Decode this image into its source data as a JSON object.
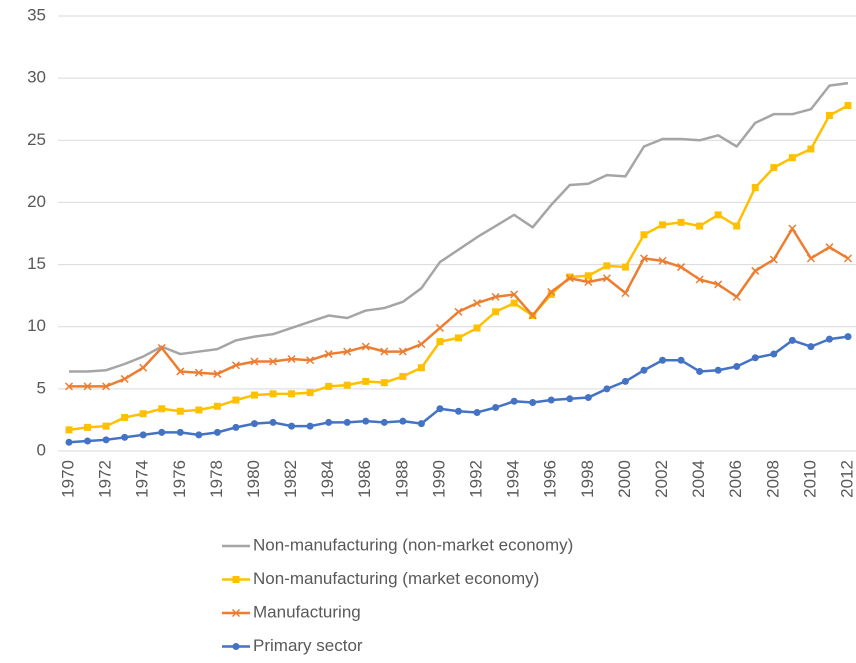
{
  "chart_data": {
    "type": "line",
    "x": [
      1970,
      1971,
      1972,
      1973,
      1974,
      1975,
      1976,
      1977,
      1978,
      1979,
      1980,
      1981,
      1982,
      1983,
      1984,
      1985,
      1986,
      1987,
      1988,
      1989,
      1990,
      1991,
      1992,
      1993,
      1994,
      1995,
      1996,
      1997,
      1998,
      1999,
      2000,
      2001,
      2002,
      2003,
      2004,
      2005,
      2006,
      2007,
      2008,
      2009,
      2010,
      2011,
      2012
    ],
    "xlim": [
      1970,
      2012
    ],
    "xticks": [
      1970,
      1972,
      1974,
      1976,
      1978,
      1980,
      1982,
      1984,
      1986,
      1988,
      1990,
      1992,
      1994,
      1996,
      1998,
      2000,
      2002,
      2004,
      2006,
      2008,
      2010,
      2012
    ],
    "ylim": [
      0,
      35
    ],
    "yticks": [
      0,
      5,
      10,
      15,
      20,
      25,
      30,
      35
    ],
    "grid": true,
    "legend": "bottom",
    "series": [
      {
        "name": "Non-manufacturing (non-market economy)",
        "color": "#a5a5a5",
        "marker": "none",
        "values": [
          6.4,
          6.4,
          6.5,
          7.0,
          7.6,
          8.4,
          7.8,
          8.0,
          8.2,
          8.9,
          9.2,
          9.4,
          9.9,
          10.4,
          10.9,
          10.7,
          11.3,
          11.5,
          12.0,
          13.1,
          15.2,
          16.2,
          17.2,
          18.1,
          19.0,
          18.0,
          19.8,
          21.4,
          21.5,
          22.2,
          22.1,
          24.5,
          25.1,
          25.1,
          25.0,
          25.4,
          24.5,
          26.4,
          27.1,
          27.1,
          27.5,
          29.4,
          29.6
        ]
      },
      {
        "name": "Non-manufacturing (market economy)",
        "color": "#ffc000",
        "marker": "square",
        "values": [
          1.7,
          1.9,
          2.0,
          2.7,
          3.0,
          3.4,
          3.2,
          3.3,
          3.6,
          4.1,
          4.5,
          4.6,
          4.6,
          4.7,
          5.2,
          5.3,
          5.6,
          5.5,
          6.0,
          6.7,
          8.8,
          9.1,
          9.9,
          11.2,
          11.9,
          10.9,
          12.6,
          14.0,
          14.1,
          14.9,
          14.8,
          17.4,
          18.2,
          18.4,
          18.1,
          19.0,
          18.1,
          21.2,
          22.8,
          23.6,
          24.3,
          27.0,
          27.8
        ]
      },
      {
        "name": "Manufacturing",
        "color": "#ed7d31",
        "marker": "x",
        "values": [
          5.2,
          5.2,
          5.2,
          5.8,
          6.7,
          8.3,
          6.4,
          6.3,
          6.2,
          6.9,
          7.2,
          7.2,
          7.4,
          7.3,
          7.8,
          8.0,
          8.4,
          8.0,
          8.0,
          8.6,
          9.9,
          11.2,
          11.9,
          12.4,
          12.6,
          10.9,
          12.8,
          13.9,
          13.6,
          13.9,
          12.7,
          15.5,
          15.3,
          14.8,
          13.8,
          13.4,
          12.4,
          14.5,
          15.4,
          17.9,
          15.5,
          16.4,
          15.5
        ]
      },
      {
        "name": "Primary sector",
        "color": "#4472c4",
        "marker": "circle",
        "values": [
          0.7,
          0.8,
          0.9,
          1.1,
          1.3,
          1.5,
          1.5,
          1.3,
          1.5,
          1.9,
          2.2,
          2.3,
          2.0,
          2.0,
          2.3,
          2.3,
          2.4,
          2.3,
          2.4,
          2.2,
          3.4,
          3.2,
          3.1,
          3.5,
          4.0,
          3.9,
          4.1,
          4.2,
          4.3,
          5.0,
          5.6,
          6.5,
          7.3,
          7.3,
          6.4,
          6.5,
          6.8,
          7.5,
          7.8,
          8.9,
          8.4,
          9.0,
          9.2
        ]
      }
    ]
  }
}
